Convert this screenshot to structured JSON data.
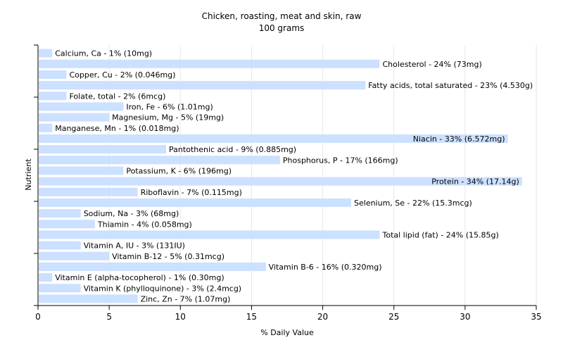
{
  "chart_data": {
    "type": "bar",
    "orientation": "horizontal",
    "title": "Chicken, roasting, meat and skin, raw",
    "subtitle": "100 grams",
    "xlabel": "% Daily Value",
    "ylabel": "Nutrient",
    "xlim": [
      0,
      35
    ],
    "xticks": [
      0,
      5,
      10,
      15,
      20,
      25,
      30,
      35
    ],
    "grid": true,
    "bar_color": "#cce0ff",
    "categories": [
      "Calcium, Ca - 1% (10mg)",
      "Cholesterol - 24% (73mg)",
      "Copper, Cu - 2% (0.046mg)",
      "Fatty acids, total saturated - 23% (4.530g)",
      "Folate, total - 2% (6mcg)",
      "Iron, Fe - 6% (1.01mg)",
      "Magnesium, Mg - 5% (19mg)",
      "Manganese, Mn - 1% (0.018mg)",
      "Niacin - 33% (6.572mg)",
      "Pantothenic acid - 9% (0.885mg)",
      "Phosphorus, P - 17% (166mg)",
      "Potassium, K - 6% (196mg)",
      "Protein - 34% (17.14g)",
      "Riboflavin - 7% (0.115mg)",
      "Selenium, Se - 22% (15.3mcg)",
      "Sodium, Na - 3% (68mg)",
      "Thiamin - 4% (0.058mg)",
      "Total lipid (fat) - 24% (15.85g)",
      "Vitamin A, IU - 3% (131IU)",
      "Vitamin B-12 - 5% (0.31mcg)",
      "Vitamin B-6 - 16% (0.320mg)",
      "Vitamin E (alpha-tocopherol) - 1% (0.30mg)",
      "Vitamin K (phylloquinone) - 3% (2.4mcg)",
      "Zinc, Zn - 7% (1.07mg)"
    ],
    "values": [
      1,
      24,
      2,
      23,
      2,
      6,
      5,
      1,
      33,
      9,
      17,
      6,
      34,
      7,
      22,
      3,
      4,
      24,
      3,
      5,
      16,
      1,
      3,
      7
    ]
  }
}
